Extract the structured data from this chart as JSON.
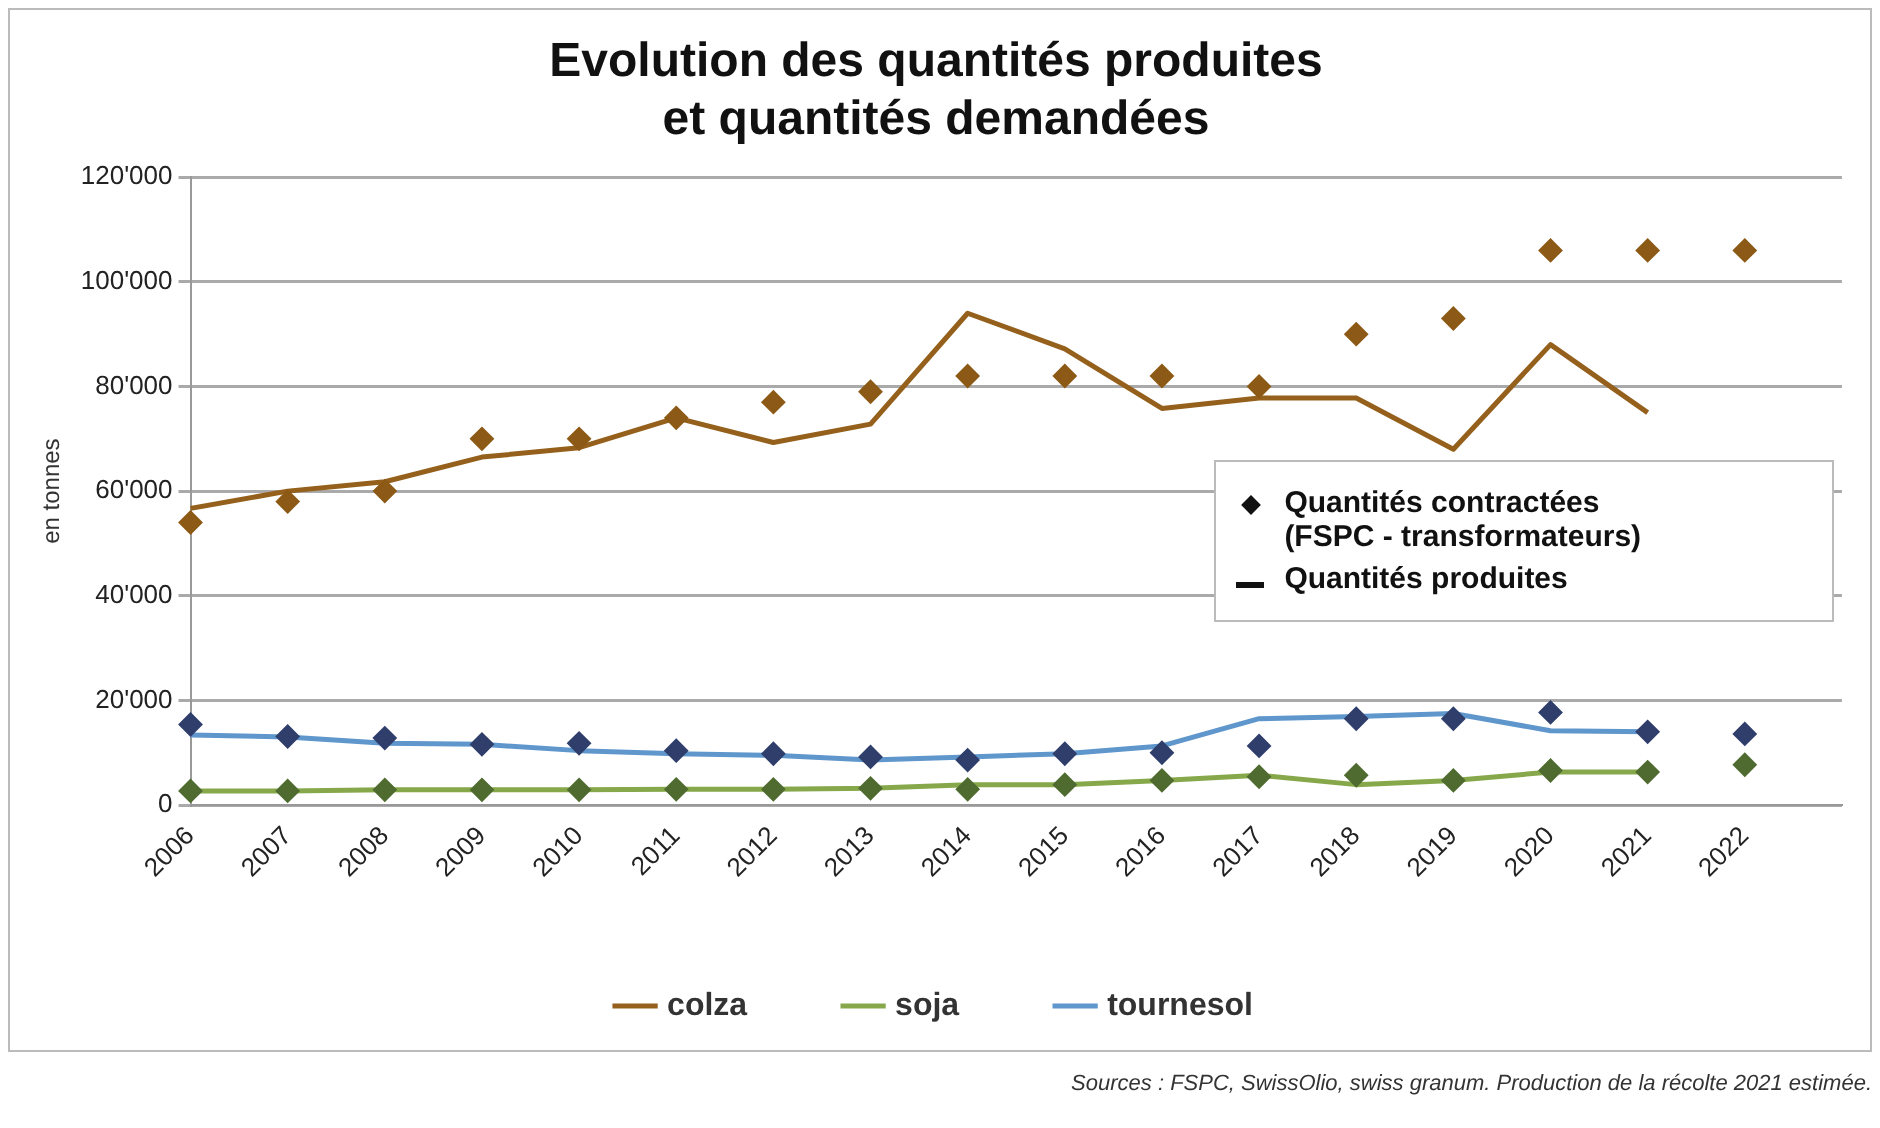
{
  "chart_data": {
    "type": "line",
    "title": "Evolution des quantités produites\net quantités demandées",
    "ylabel": "en tonnes",
    "categories": [
      "2006",
      "2007",
      "2008",
      "2009",
      "2010",
      "2011",
      "2012",
      "2013",
      "2014",
      "2015",
      "2016",
      "2017",
      "2018",
      "2019",
      "2020",
      "2021",
      "2022",
      null
    ],
    "series": [
      {
        "name": "colza",
        "type": "line",
        "marker": "none",
        "color": "#94601c",
        "values": [
          56700,
          60000,
          61800,
          66500,
          68300,
          74000,
          69300,
          72800,
          94000,
          87200,
          75800,
          77800,
          77800,
          68000,
          88000,
          75000,
          null,
          null
        ]
      },
      {
        "name": "soja",
        "type": "line",
        "marker": "none",
        "color": "#86a84a",
        "values": [
          2700,
          2700,
          2900,
          2900,
          2900,
          3000,
          3000,
          3200,
          3900,
          3900,
          4700,
          5700,
          3900,
          4700,
          6300,
          6300,
          null,
          null
        ]
      },
      {
        "name": "tournesol",
        "type": "line",
        "marker": "none",
        "color": "#5f96cc",
        "values": [
          13400,
          13000,
          11800,
          11600,
          10400,
          9800,
          9500,
          8600,
          9200,
          9800,
          11300,
          16500,
          16900,
          17500,
          14200,
          14000,
          null,
          null
        ]
      },
      {
        "type": "scatter",
        "marker": "diamond",
        "color": "#8c5a16",
        "values": [
          54000,
          58000,
          60000,
          70000,
          70000,
          74000,
          77000,
          79000,
          82000,
          82000,
          82000,
          80000,
          90000,
          93000,
          106000,
          106000,
          106000,
          null
        ]
      },
      {
        "type": "scatter",
        "marker": "diamond",
        "color": "#4f6b30",
        "values": [
          2700,
          2700,
          2900,
          2900,
          2900,
          3000,
          3000,
          3200,
          3000,
          3900,
          4700,
          5400,
          5700,
          4700,
          6600,
          6300,
          7700,
          null
        ]
      },
      {
        "type": "scatter",
        "marker": "diamond",
        "color": "#2f3e6b",
        "values": [
          15400,
          13100,
          12800,
          11600,
          11800,
          10400,
          9800,
          9200,
          8600,
          9800,
          10000,
          11300,
          16500,
          16500,
          17700,
          14000,
          13600,
          null
        ]
      }
    ],
    "ylim": [
      0,
      120000
    ],
    "yticks": [
      0,
      {
        "value": 20000,
        "label": "20'000"
      },
      {
        "value": 40000,
        "label": "40'000"
      },
      {
        "value": 60000,
        "label": "60'000"
      },
      {
        "value": 80000,
        "label": "80'000"
      },
      {
        "value": 100000,
        "label": "100'000"
      },
      {
        "value": 120000,
        "label": "120'000"
      }
    ],
    "grid": "y",
    "legend": "bottom",
    "annotations": [
      "Quantités contractées\n(FSPC - transformateurs)",
      "Quantités produites",
      "Sources : FSPC, SwissOlio, swiss granum. Production de la récolte 2021 estimée."
    ]
  }
}
